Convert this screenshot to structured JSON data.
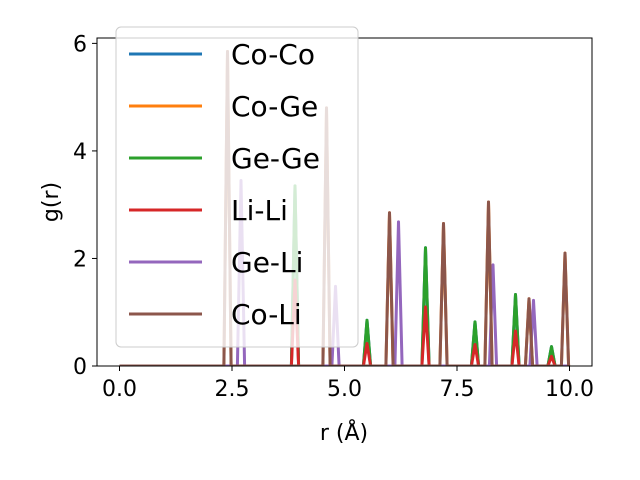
{
  "chart_data": {
    "type": "line",
    "title": "",
    "xlabel": "r (Å)",
    "ylabel": "g(r)",
    "xlim": [
      -0.5,
      10.5
    ],
    "ylim": [
      0,
      6.1
    ],
    "xticks": [
      0.0,
      2.5,
      5.0,
      7.5,
      10.0
    ],
    "xtick_labels": [
      "0.0",
      "2.5",
      "5.0",
      "7.5",
      "10.0"
    ],
    "yticks": [
      0,
      2,
      4,
      6
    ],
    "ytick_labels": [
      "0",
      "2",
      "4",
      "6"
    ],
    "grid": false,
    "legend_position": "upper-left",
    "series": [
      {
        "name": "Co-Co",
        "color": "#1f77b4",
        "peaks": [
          [
            3.9,
            3.35
          ],
          [
            5.5,
            0.85
          ],
          [
            6.8,
            2.2
          ],
          [
            7.9,
            0.82
          ],
          [
            8.8,
            1.33
          ],
          [
            9.6,
            0.36
          ]
        ]
      },
      {
        "name": "Co-Ge",
        "color": "#ff7f0e",
        "peaks": [
          [
            2.4,
            5.85
          ],
          [
            4.6,
            4.8
          ],
          [
            6.0,
            2.85
          ],
          [
            7.2,
            2.65
          ],
          [
            8.2,
            3.05
          ],
          [
            9.1,
            1.25
          ],
          [
            9.9,
            2.1
          ]
        ]
      },
      {
        "name": "Ge-Ge",
        "color": "#2ca02c",
        "peaks": [
          [
            3.9,
            3.35
          ],
          [
            5.5,
            0.85
          ],
          [
            6.8,
            2.2
          ],
          [
            7.9,
            0.82
          ],
          [
            8.8,
            1.33
          ],
          [
            9.6,
            0.36
          ]
        ]
      },
      {
        "name": "Li-Li",
        "color": "#d62728",
        "peaks": [
          [
            3.9,
            1.6
          ],
          [
            5.5,
            0.42
          ],
          [
            6.8,
            1.1
          ],
          [
            7.9,
            0.4
          ],
          [
            8.8,
            0.65
          ],
          [
            9.6,
            0.18
          ]
        ]
      },
      {
        "name": "Ge-Li",
        "color": "#9467bd",
        "peaks": [
          [
            2.7,
            3.45
          ],
          [
            4.8,
            1.48
          ],
          [
            6.2,
            2.68
          ],
          [
            8.3,
            1.88
          ],
          [
            9.2,
            1.22
          ]
        ]
      },
      {
        "name": "Co-Li",
        "color": "#8c564b",
        "peaks": [
          [
            2.4,
            5.85
          ],
          [
            4.6,
            4.8
          ],
          [
            6.0,
            2.85
          ],
          [
            7.2,
            2.65
          ],
          [
            8.2,
            3.05
          ],
          [
            9.1,
            1.25
          ],
          [
            9.9,
            2.1
          ]
        ]
      }
    ]
  }
}
